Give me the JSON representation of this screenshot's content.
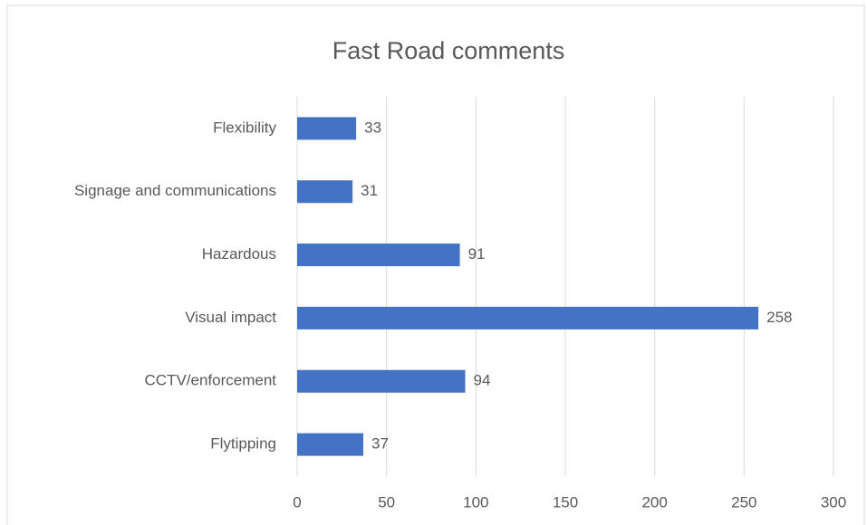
{
  "chart_data": {
    "type": "bar",
    "orientation": "horizontal",
    "title": "Fast Road comments",
    "categories": [
      "Flexibility",
      "Signage and communications",
      "Hazardous",
      "Visual impact",
      "CCTV/enforcement",
      "Flytipping"
    ],
    "values": [
      33,
      31,
      91,
      258,
      94,
      37
    ],
    "color": "#4472c4",
    "xlim": [
      0,
      300
    ],
    "xticks": [
      0,
      50,
      100,
      150,
      200,
      250,
      300
    ],
    "grid": true,
    "data_labels": true
  }
}
